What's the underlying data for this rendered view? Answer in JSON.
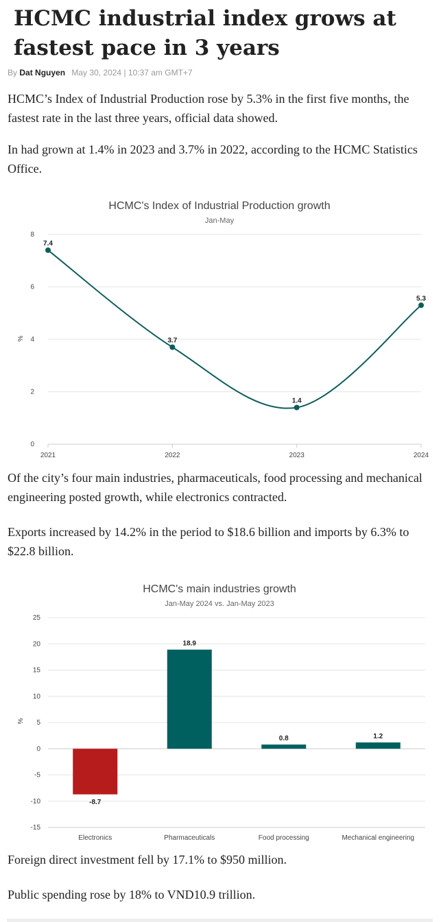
{
  "article": {
    "headline": "HCMC industrial index grows at fastest pace in 3 years",
    "byline_prefix": "By",
    "author": "Dat Nguyen",
    "date": "May 30, 2024 | 10:37 am GMT+7",
    "paragraphs": [
      "HCMC’s Index of Industrial Production rose by 5.3% in the first five months, the fastest rate in the last three years, official data showed.",
      "In had grown at 1.4% in 2023 and 3.7% in 2022, according to the HCMC Statistics Office.",
      "Of the city’s four main industries, pharmaceuticals, food processing and mechanical engineering posted growth, while electronics contracted.",
      "Exports increased by 14.2% in the period to $18.6 billion and imports by 6.3% to $22.8 billion.",
      "Foreign direct investment fell by 17.1% to $950 million.",
      "Public spending rose by 18% to VND10.9 trillion."
    ]
  },
  "chart_data": [
    {
      "type": "line",
      "title": "HCMC's Index of Industrial Production growth",
      "subtitle": "Jan-May",
      "xlabel": "",
      "ylabel": "%",
      "x": [
        "2021",
        "2022",
        "2023",
        "2024"
      ],
      "series": [
        {
          "values": [
            7.4,
            3.7,
            1.4,
            5.3
          ]
        }
      ],
      "ylim": [
        0,
        8
      ],
      "yticks": [
        0,
        2,
        4,
        6,
        8
      ],
      "grid": true,
      "color": "#0d5c5c"
    },
    {
      "type": "bar",
      "title": "HCMC's main industries growth",
      "subtitle": "Jan-May 2024 vs. Jan-May 2023",
      "xlabel": "",
      "ylabel": "%",
      "categories": [
        "Electronics",
        "Pharmaceuticals",
        "Food processing",
        "Mechanical engineering"
      ],
      "values": [
        -8.7,
        18.9,
        0.8,
        1.2
      ],
      "ylim": [
        -15,
        25
      ],
      "yticks": [
        -15,
        -10,
        -5,
        0,
        5,
        10,
        15,
        20,
        25
      ],
      "grid": true,
      "colors": {
        "positive": "#005f5f",
        "negative": "#b71c1c"
      }
    }
  ]
}
